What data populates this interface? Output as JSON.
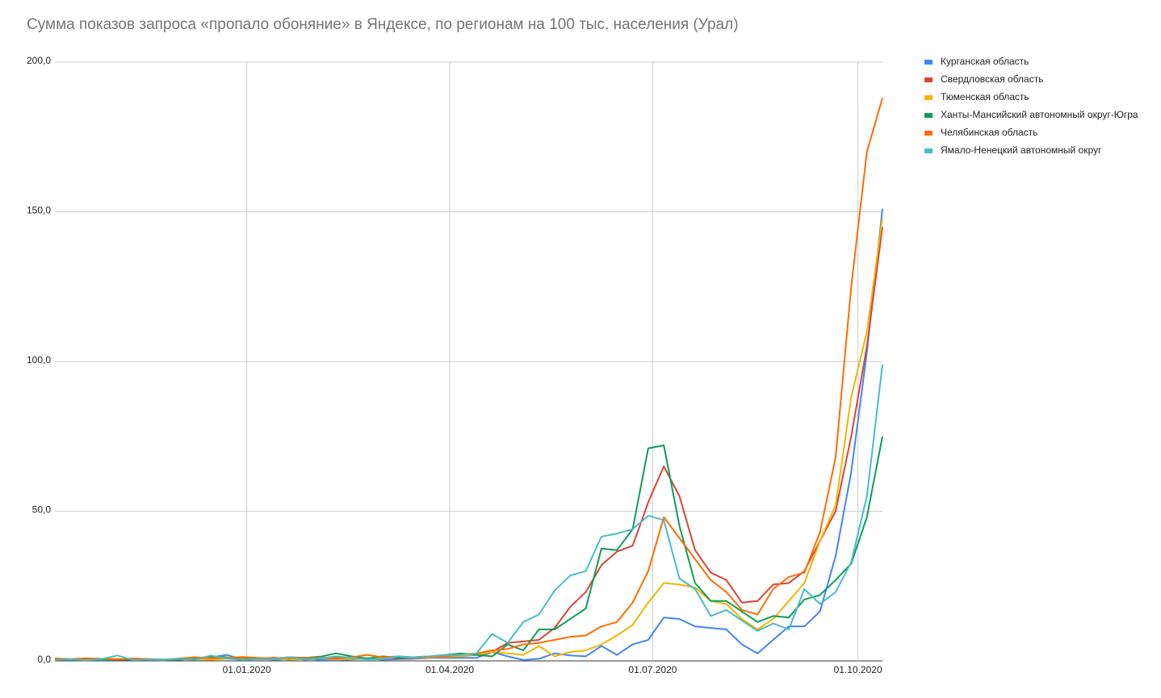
{
  "chart_data": {
    "type": "line",
    "title": "Сумма показов запроса «пропало обоняние» в Яндексе, по регионам на 100 тыс. населения (Урал)",
    "x": [
      "07.10.2019",
      "14.10.2019",
      "21.10.2019",
      "28.10.2019",
      "04.11.2019",
      "11.11.2019",
      "18.11.2019",
      "25.11.2019",
      "02.12.2019",
      "09.12.2019",
      "16.12.2019",
      "23.12.2019",
      "30.12.2019",
      "06.01.2020",
      "13.01.2020",
      "20.01.2020",
      "27.01.2020",
      "03.02.2020",
      "10.02.2020",
      "17.02.2020",
      "24.02.2020",
      "02.03.2020",
      "09.03.2020",
      "16.03.2020",
      "23.03.2020",
      "30.03.2020",
      "06.04.2020",
      "13.04.2020",
      "20.04.2020",
      "27.04.2020",
      "04.05.2020",
      "11.05.2020",
      "18.05.2020",
      "25.05.2020",
      "01.06.2020",
      "08.06.2020",
      "15.06.2020",
      "22.06.2020",
      "29.06.2020",
      "06.07.2020",
      "13.07.2020",
      "20.07.2020",
      "27.07.2020",
      "03.08.2020",
      "10.08.2020",
      "17.08.2020",
      "24.08.2020",
      "31.08.2020",
      "07.09.2020",
      "14.09.2020",
      "21.09.2020",
      "28.09.2020",
      "05.10.2020",
      "12.10.2020"
    ],
    "xlim": [
      "07.10.2019",
      "12.10.2020"
    ],
    "xticks": [
      "01.01.2020",
      "01.04.2020",
      "01.07.2020",
      "01.10.2020"
    ],
    "ylim": [
      0,
      200
    ],
    "yticks": [
      {
        "value": 0,
        "label": "0,0"
      },
      {
        "value": 50,
        "label": "50,0"
      },
      {
        "value": 100,
        "label": "100,0"
      },
      {
        "value": 150,
        "label": "150,0"
      },
      {
        "value": 200,
        "label": "200,0"
      }
    ],
    "grid": true,
    "legend": "right",
    "series": [
      {
        "name": "Курганская область",
        "color": "#4285f4",
        "values": [
          0.5,
          0.3,
          0.5,
          0.2,
          0.4,
          0.8,
          0.3,
          0.2,
          0.5,
          0.6,
          1.2,
          2,
          0.5,
          0.8,
          0.4,
          0.6,
          1,
          0.3,
          0.2,
          0.5,
          0.8,
          0.4,
          0.6,
          0.7,
          1,
          1,
          1,
          1,
          3,
          1.5,
          0.3,
          0.7,
          2.5,
          1.8,
          1.5,
          5,
          2,
          5.5,
          7,
          14.5,
          14,
          11.5,
          11,
          10.5,
          5.5,
          2.5,
          7,
          11.5,
          11.5,
          16.5,
          35,
          63,
          103,
          151
        ]
      },
      {
        "name": "Свердловская область",
        "color": "#db4437",
        "values": [
          0.8,
          0.5,
          0.7,
          0.6,
          0.4,
          0.5,
          0.6,
          0.4,
          0.5,
          0.7,
          0.6,
          0.8,
          0.9,
          0.7,
          1,
          0.8,
          0.9,
          1,
          1.2,
          1,
          0.9,
          1,
          0.8,
          1.2,
          1.3,
          1.5,
          1.5,
          2,
          3,
          6,
          6.5,
          7,
          11,
          18,
          23,
          32,
          36.5,
          38.5,
          53,
          65,
          55,
          37,
          29.5,
          27,
          19.5,
          20,
          25.5,
          26,
          30,
          40,
          50,
          75,
          105,
          145
        ]
      },
      {
        "name": "Тюменская область",
        "color": "#f4b400",
        "values": [
          0.4,
          0.6,
          0.3,
          0.5,
          0.7,
          0.4,
          0.5,
          0.3,
          0.6,
          0.5,
          0.4,
          0.7,
          0.6,
          0.5,
          0.8,
          0.4,
          0.6,
          0.9,
          0.5,
          0.7,
          0.6,
          0.8,
          1.2,
          1,
          1.1,
          1.4,
          1.5,
          2,
          3,
          2.5,
          2,
          5,
          1.5,
          3,
          3.5,
          5.5,
          8.5,
          12,
          19.5,
          26,
          25.5,
          24.5,
          20,
          19,
          14,
          10.5,
          14,
          20,
          26,
          40,
          52,
          88,
          110,
          148
        ]
      },
      {
        "name": "Ханты-Мансийский автономный округ-Югра",
        "color": "#0f9d58",
        "values": [
          0.6,
          0.4,
          0.5,
          0.3,
          0.5,
          0.4,
          0.6,
          0.3,
          0.4,
          0.8,
          1.5,
          1.2,
          0.4,
          0.8,
          0.6,
          1.2,
          1,
          1.4,
          2.5,
          1.5,
          0.8,
          1.5,
          1,
          1.2,
          1.5,
          2,
          2.5,
          2,
          1.5,
          5.5,
          3.5,
          10.5,
          10.5,
          14,
          17.5,
          37.5,
          37,
          44,
          71,
          72,
          45,
          26,
          20,
          20,
          16.5,
          13,
          15,
          14.5,
          20.5,
          22,
          27,
          32.5,
          48,
          75
        ]
      },
      {
        "name": "Челябинская область",
        "color": "#ff6d00",
        "values": [
          0.8,
          0.6,
          0.9,
          0.7,
          0.5,
          0.8,
          0.6,
          0.4,
          0.8,
          1.2,
          0.9,
          1,
          1.3,
          1,
          0.8,
          1.2,
          0.9,
          1,
          0.7,
          1.2,
          2,
          1.2,
          1.5,
          1,
          1.2,
          1.5,
          2,
          2.5,
          3.5,
          4,
          5.5,
          6,
          7,
          8,
          8.5,
          11.5,
          13,
          19.5,
          30,
          48,
          41,
          34,
          27,
          23,
          17,
          15.5,
          24,
          28,
          29.5,
          43,
          68,
          125,
          170,
          188
        ]
      },
      {
        "name": "Ямало-Ненецкий автономный округ",
        "color": "#46bdc6",
        "values": [
          0.3,
          0.5,
          0.2,
          0.6,
          1.8,
          0.3,
          0.4,
          0.5,
          0.6,
          0.4,
          1.8,
          0.8,
          0.3,
          0.6,
          0.5,
          1.2,
          0.4,
          0.8,
          1.5,
          1,
          0.5,
          0.6,
          1.5,
          1.2,
          1.5,
          2,
          2,
          2.5,
          9,
          6,
          13,
          15.5,
          23.5,
          28.5,
          30,
          41.5,
          42.5,
          44,
          48.5,
          47,
          27.5,
          24,
          15,
          17,
          13.5,
          10,
          12.5,
          10.5,
          24,
          19,
          23,
          33,
          55,
          99
        ]
      }
    ]
  }
}
